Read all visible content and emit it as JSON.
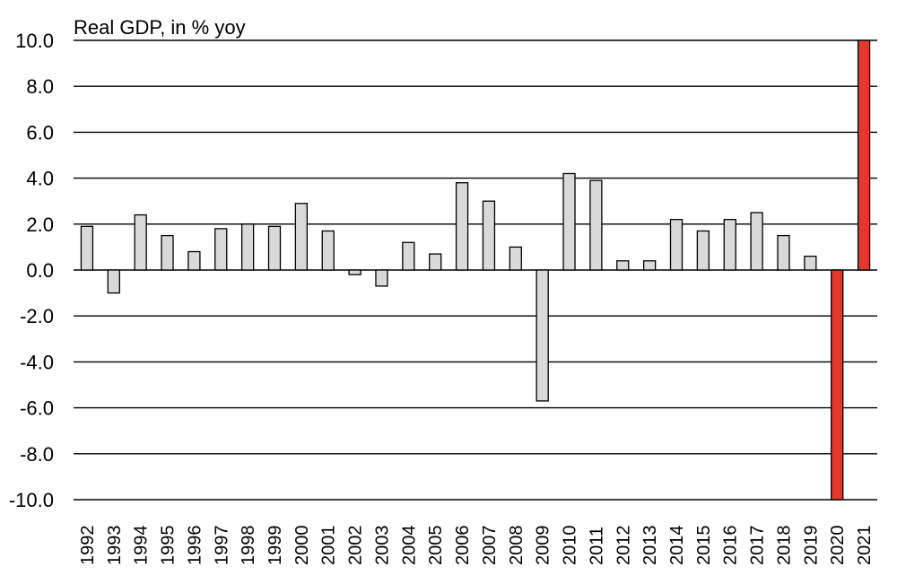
{
  "chart_data": {
    "type": "bar",
    "title": "",
    "ylabel": "Real GDP, in % yoy",
    "xlabel": "",
    "ylim": [
      -10.0,
      10.0
    ],
    "yticks": [
      "10.0",
      "8.0",
      "6.0",
      "4.0",
      "2.0",
      "0.0",
      "-2.0",
      "-4.0",
      "-6.0",
      "-8.0",
      "-10.0"
    ],
    "ytick_values": [
      10,
      8,
      6,
      4,
      2,
      0,
      -2,
      -4,
      -6,
      -8,
      -10
    ],
    "grid": true,
    "categories": [
      "1992",
      "1993",
      "1994",
      "1995",
      "1996",
      "1997",
      "1998",
      "1999",
      "2000",
      "2001",
      "2002",
      "2003",
      "2004",
      "2005",
      "2006",
      "2007",
      "2008",
      "2009",
      "2010",
      "2011",
      "2012",
      "2013",
      "2014",
      "2015",
      "2016",
      "2017",
      "2018",
      "2019",
      "2020",
      "2021"
    ],
    "values": [
      1.9,
      -1.0,
      2.4,
      1.5,
      0.8,
      1.8,
      2.0,
      1.9,
      2.9,
      1.7,
      -0.2,
      -0.7,
      1.2,
      0.7,
      3.8,
      3.0,
      1.0,
      -5.7,
      4.2,
      3.9,
      0.4,
      0.4,
      2.2,
      1.7,
      2.2,
      2.5,
      1.5,
      0.6,
      -10.0,
      10.0
    ],
    "highlight_categories": [
      "2020",
      "2021"
    ],
    "colors": {
      "bar_fill": "#d9d9d9",
      "bar_stroke": "#000000",
      "highlight_fill": "#e03a2f",
      "grid": "#000000"
    }
  }
}
